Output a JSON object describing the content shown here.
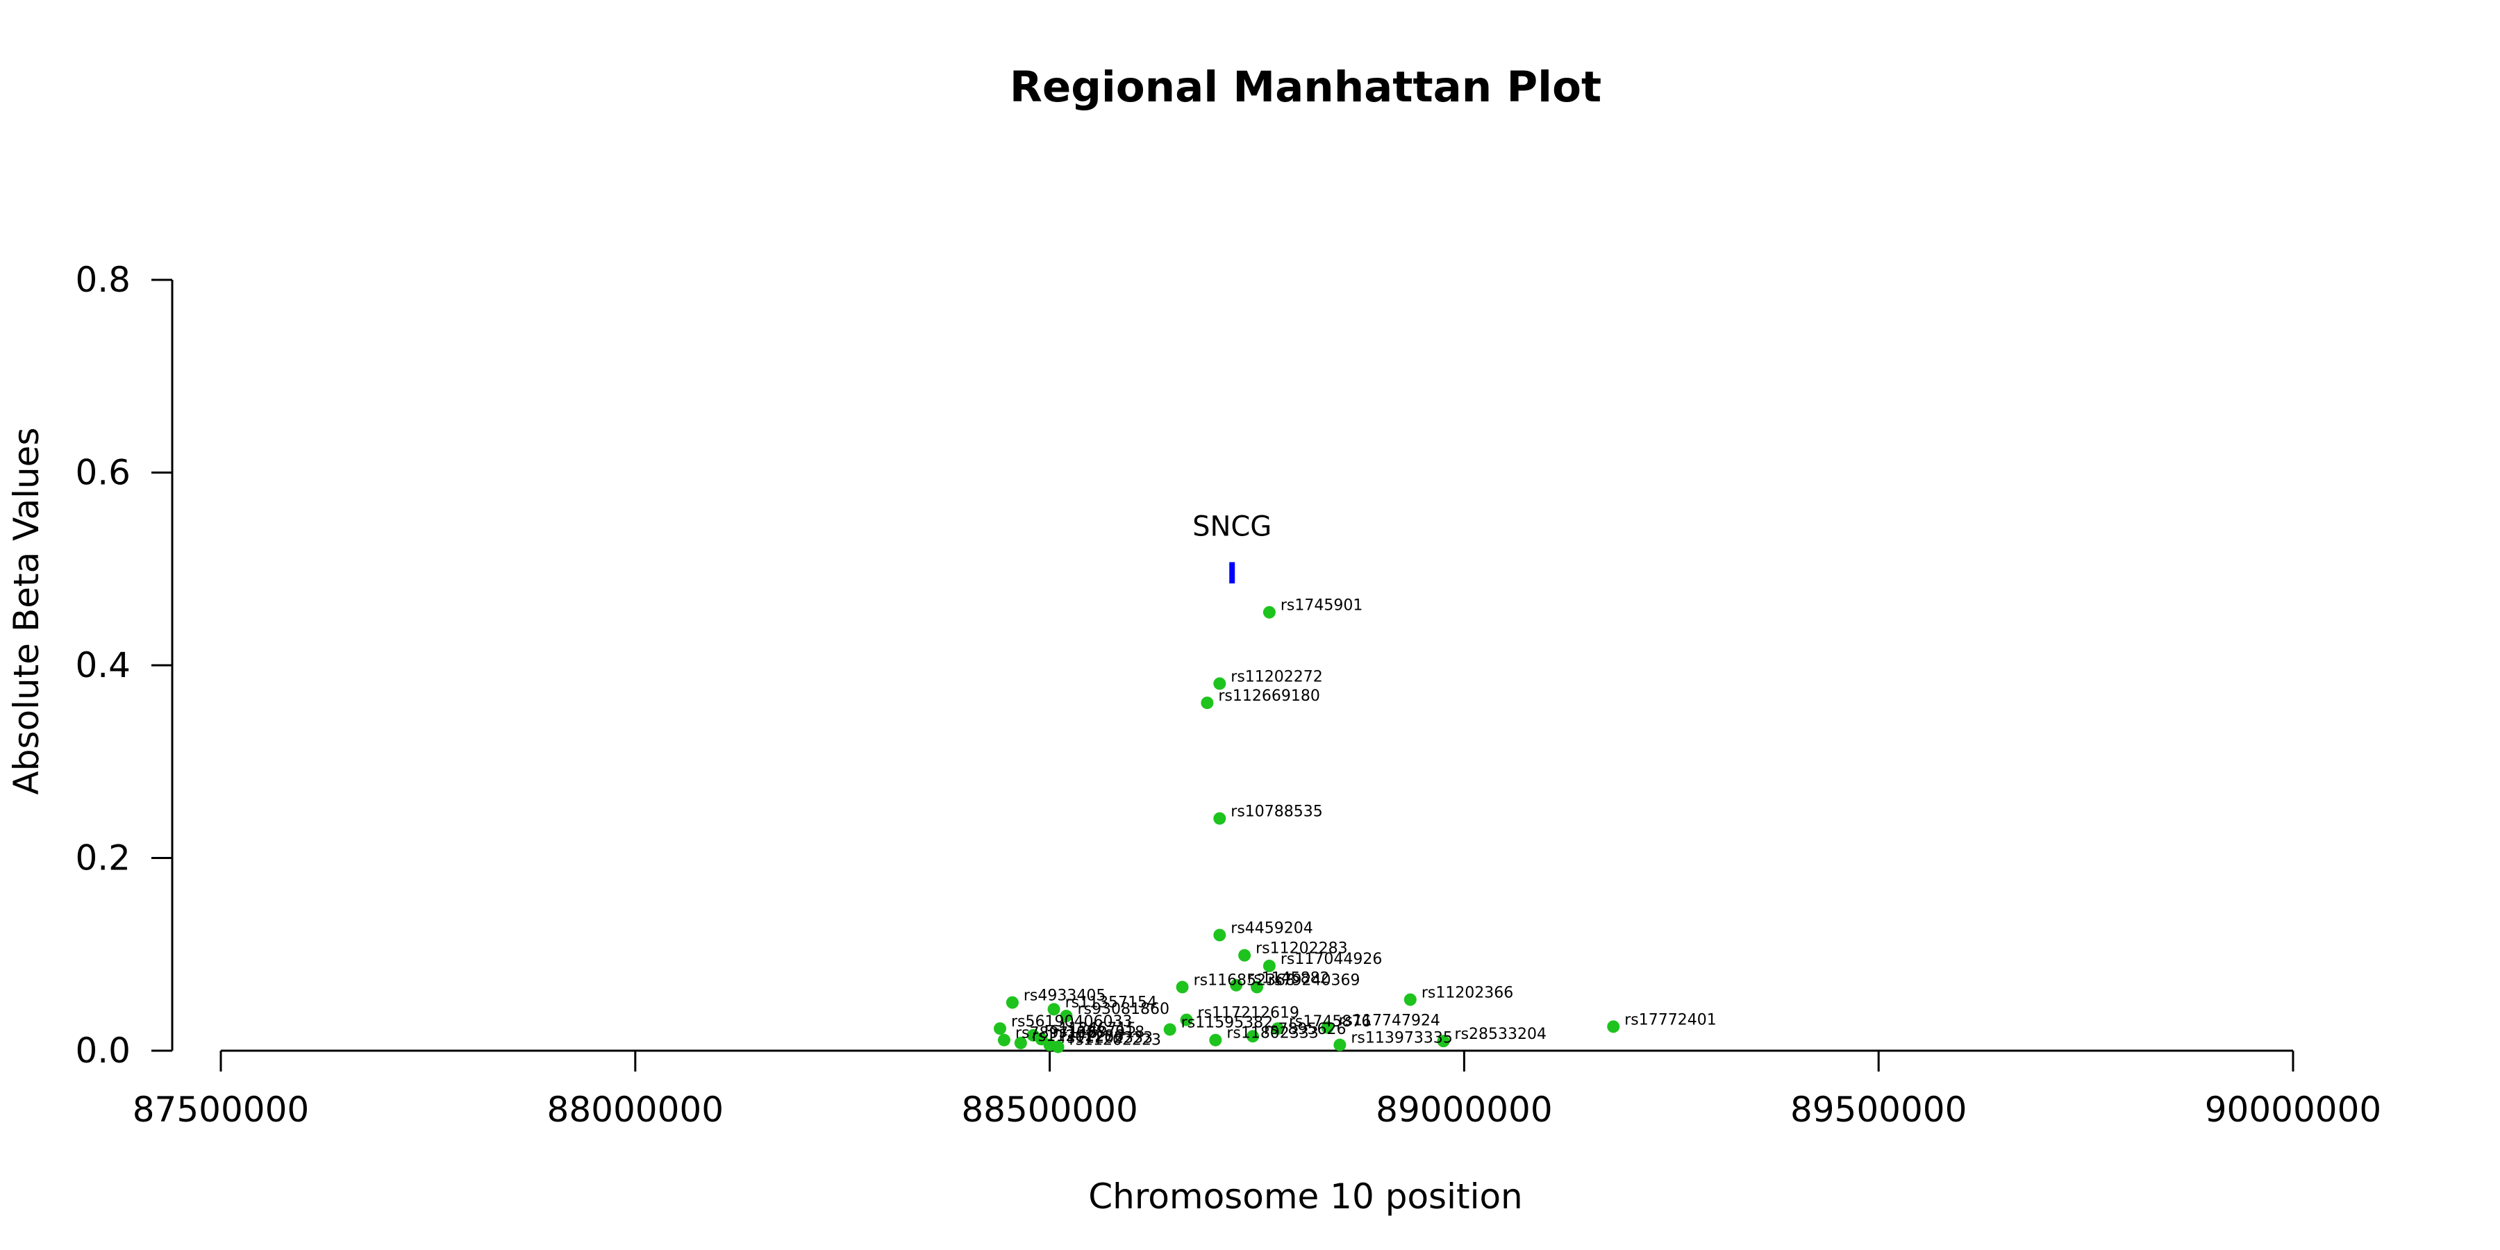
{
  "chart_data": {
    "type": "scatter",
    "title": "Regional Manhattan Plot",
    "xlabel": "Chromosome 10 position",
    "ylabel": "Absolute Beta Values",
    "xlim": [
      87500000,
      90000000
    ],
    "ylim": [
      0,
      0.8
    ],
    "x_ticks": [
      87500000,
      88000000,
      88500000,
      89000000,
      89500000,
      90000000
    ],
    "y_ticks": [
      0.0,
      0.2,
      0.4,
      0.6,
      0.8
    ],
    "x_tick_labels": [
      "87500000",
      "88000000",
      "88500000",
      "89000000",
      "89500000",
      "90000000"
    ],
    "y_tick_labels": [
      "0.0",
      "0.2",
      "0.4",
      "0.6",
      "0.8"
    ],
    "grid": false,
    "point_color": "#1ec31e",
    "gene_color": "#0000ff",
    "gene": {
      "name": "SNCG",
      "x": 88720000,
      "y_range": [
        0.485,
        0.507
      ]
    },
    "points": [
      {
        "label": "rs1745901",
        "x": 88765000,
        "y": 0.455
      },
      {
        "label": "rs11202272",
        "x": 88705000,
        "y": 0.381
      },
      {
        "label": "rs112669180",
        "x": 88690000,
        "y": 0.361
      },
      {
        "label": "rs10788535",
        "x": 88705000,
        "y": 0.241
      },
      {
        "label": "rs4459204",
        "x": 88705000,
        "y": 0.12
      },
      {
        "label": "rs11202283",
        "x": 88735000,
        "y": 0.099
      },
      {
        "label": "rs117044926",
        "x": 88765000,
        "y": 0.088
      },
      {
        "label": "rs116852368",
        "x": 88660000,
        "y": 0.066
      },
      {
        "label": "rs1145882",
        "x": 88725000,
        "y": 0.068
      },
      {
        "label": "rs79240369",
        "x": 88750000,
        "y": 0.066
      },
      {
        "label": "rs11202366",
        "x": 88935000,
        "y": 0.053
      },
      {
        "label": "rs17772401",
        "x": 89180000,
        "y": 0.025
      },
      {
        "label": "rs4933405",
        "x": 88455000,
        "y": 0.05
      },
      {
        "label": "rs11357154",
        "x": 88505000,
        "y": 0.043
      },
      {
        "label": "rs93081860",
        "x": 88520000,
        "y": 0.036
      },
      {
        "label": "rs117212619",
        "x": 88665000,
        "y": 0.032
      },
      {
        "label": "rs11595382",
        "x": 88645000,
        "y": 0.022
      },
      {
        "label": "rs1745876",
        "x": 88775000,
        "y": 0.023
      },
      {
        "label": "rs117747924",
        "x": 88835000,
        "y": 0.024
      },
      {
        "label": "rs56190406033",
        "x": 88440000,
        "y": 0.023
      },
      {
        "label": "rs7895626",
        "x": 88745000,
        "y": 0.015
      },
      {
        "label": "rs11802333",
        "x": 88700000,
        "y": 0.011
      },
      {
        "label": "rs113973335",
        "x": 88850000,
        "y": 0.006
      },
      {
        "label": "rs28533204",
        "x": 88975000,
        "y": 0.01
      },
      {
        "label": "rs11246715",
        "x": 88480000,
        "y": 0.016
      },
      {
        "label": "rs10887918",
        "x": 88490000,
        "y": 0.012
      },
      {
        "label": "rs11202286",
        "x": 88465000,
        "y": 0.008
      },
      {
        "label": "rs11202333",
        "x": 88500000,
        "y": 0.006
      },
      {
        "label": "rs7897116",
        "x": 88445000,
        "y": 0.011
      },
      {
        "label": "rs11202223",
        "x": 88510000,
        "y": 0.004
      }
    ]
  }
}
